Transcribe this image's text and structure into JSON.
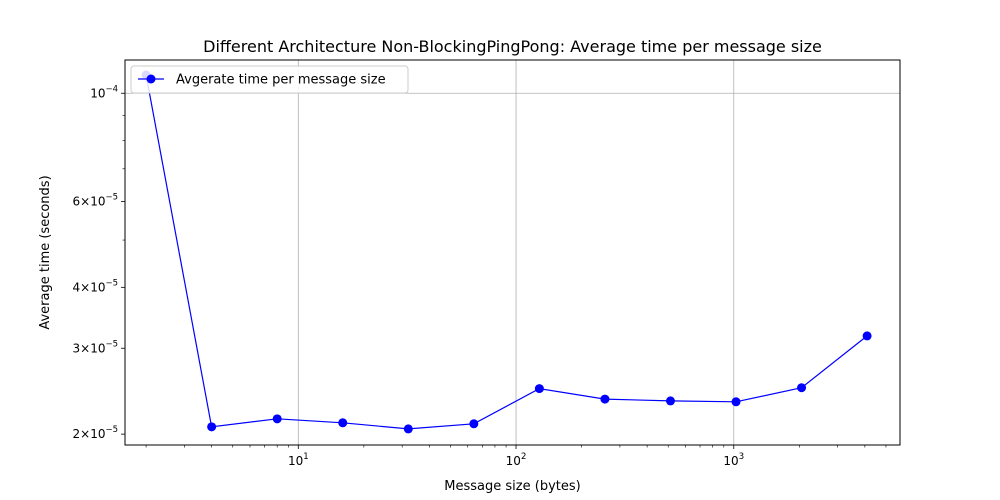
{
  "chart_data": {
    "type": "line",
    "title": "Different Architecture Non-BlockingPingPong: Average time per message size",
    "xlabel": "Message size (bytes)",
    "ylabel": "Average time (seconds)",
    "x_scale": "log",
    "y_scale": "log",
    "xlim": [
      1.6,
      5800
    ],
    "ylim": [
      1.9e-05,
      0.000117
    ],
    "grid": true,
    "legend_placement": "top-left",
    "x_ticks": [
      {
        "value": 10,
        "base": "10",
        "exp": "1"
      },
      {
        "value": 100,
        "base": "10",
        "exp": "2"
      },
      {
        "value": 1000,
        "base": "10",
        "exp": "3"
      }
    ],
    "y_ticks": [
      {
        "value": 2e-05,
        "mant": "2",
        "base": "×10",
        "exp": "−5"
      },
      {
        "value": 3e-05,
        "mant": "3",
        "base": "×10",
        "exp": "−5"
      },
      {
        "value": 4e-05,
        "mant": "4",
        "base": "×10",
        "exp": "−5"
      },
      {
        "value": 6e-05,
        "mant": "6",
        "base": "×10",
        "exp": "−5"
      },
      {
        "value": 0.0001,
        "mant": "",
        "base": "10",
        "exp": "−4"
      }
    ],
    "series": [
      {
        "name": "Avgerate time per message size",
        "color": "#0000ff",
        "marker": "circle",
        "x": [
          2,
          4,
          8,
          16,
          32,
          64,
          128,
          256,
          512,
          1024,
          2048,
          4096
        ],
        "y": [
          0.000109,
          2.07e-05,
          2.15e-05,
          2.11e-05,
          2.05e-05,
          2.1e-05,
          2.48e-05,
          2.36e-05,
          2.34e-05,
          2.33e-05,
          2.49e-05,
          3.18e-05
        ]
      }
    ]
  }
}
